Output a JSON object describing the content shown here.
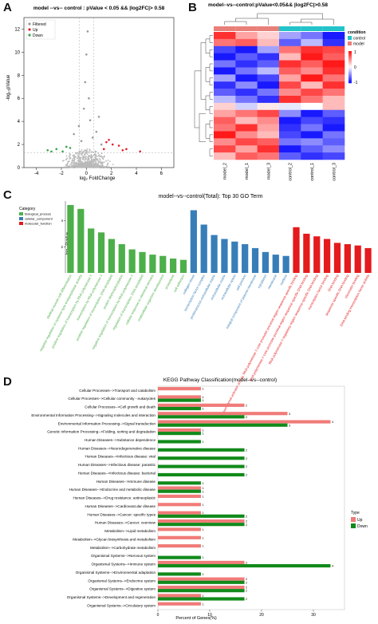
{
  "panels": {
    "a": {
      "letter": "A",
      "title": "model --vs-- control : pValue < 0.05 && |log2FC|> 0.58",
      "xlabel": "log₂ FoldChange",
      "ylabel": "-log₁₀pValue",
      "legend": [
        "Filtered",
        "Up",
        "Down"
      ],
      "legend_colors": [
        "#9a9a9a",
        "#e0222c",
        "#3aa34a"
      ],
      "chart_data": {
        "type": "scatter",
        "title": "model --vs-- control : pValue < 0.05 && |log2FC|> 0.58",
        "xlabel": "log₂ FoldChange",
        "ylabel": "-log₁₀pValue",
        "xlim": [
          -5,
          7
        ],
        "ylim": [
          0,
          13
        ],
        "xticks": [
          -4,
          -2,
          0,
          2,
          4,
          6
        ],
        "yticks": [
          0,
          2,
          4,
          6,
          8,
          10,
          12
        ],
        "series": [
          {
            "name": "Up",
            "points": [
              [
                1.6,
                2.2
              ],
              [
                2.1,
                2.0
              ],
              [
                2.6,
                1.9
              ],
              [
                1.8,
                2.4
              ],
              [
                3.2,
                1.6
              ],
              [
                4.3,
                1.4
              ],
              [
                2.9,
                1.5
              ],
              [
                1.4,
                1.6
              ]
            ]
          },
          {
            "name": "Down",
            "points": [
              [
                -1.6,
                1.8
              ],
              [
                -2.4,
                1.6
              ],
              [
                -1.9,
                1.4
              ],
              [
                -3.1,
                1.5
              ],
              [
                -1.3,
                1.7
              ],
              [
                -2.8,
                1.4
              ]
            ]
          },
          {
            "name": "Filtered",
            "points": [
              [
                0.1,
                11.8
              ],
              [
                0.0,
                9.8
              ],
              [
                -0.1,
                7.4
              ],
              [
                0.2,
                6.0
              ],
              [
                -0.2,
                5.1
              ],
              [
                0.3,
                4.1
              ],
              [
                1.0,
                4.4
              ],
              [
                -0.6,
                3.6
              ],
              [
                0.8,
                3.1
              ],
              [
                -1.0,
                2.9
              ],
              [
                0.5,
                2.6
              ],
              [
                -0.4,
                2.3
              ],
              [
                1.2,
                2.0
              ]
            ]
          }
        ],
        "thresholds": {
          "x": [
            -0.58,
            0.58
          ],
          "y": 1.3
        }
      }
    },
    "b": {
      "letter": "B",
      "title": "model--vs--control:pValue<0.05&& |log2FC|>0.58",
      "legend_title": "condition",
      "legend_items": [
        "control",
        "model"
      ],
      "legend_colors": [
        "#22c3c9",
        "#e8807a"
      ],
      "scale_ticks": [
        "1",
        "0",
        "-1"
      ],
      "columns": [
        "model_2",
        "model_1",
        "model_3",
        "control_2",
        "control_1",
        "control_3"
      ],
      "column_groups": [
        "model",
        "model",
        "model",
        "control",
        "control",
        "control"
      ],
      "chart_data": {
        "type": "heatmap",
        "title": "model--vs--control:pValue<0.05&& |log2FC|>0.58",
        "columns": [
          "model_2",
          "model_1",
          "model_3",
          "control_2",
          "control_1",
          "control_3"
        ],
        "scale": [
          -1,
          0,
          1
        ],
        "values": [
          [
            0.9,
            0.4,
            0.2,
            -0.4,
            -0.6,
            -1.0
          ],
          [
            0.6,
            0.7,
            0.3,
            -0.7,
            -0.3,
            -0.9
          ],
          [
            -0.8,
            -1.0,
            -0.4,
            0.6,
            0.9,
            0.8
          ],
          [
            -1.0,
            -0.7,
            -0.9,
            0.3,
            1.0,
            0.7
          ],
          [
            -0.6,
            -0.9,
            -0.7,
            0.9,
            0.7,
            1.0
          ],
          [
            -1.0,
            -0.6,
            -0.3,
            0.7,
            0.5,
            0.9
          ],
          [
            -0.4,
            -1.0,
            -0.8,
            0.4,
            1.0,
            0.6
          ],
          [
            -0.9,
            -0.5,
            -1.0,
            0.8,
            0.3,
            0.9
          ],
          [
            -0.7,
            -0.9,
            -0.6,
            0.5,
            0.8,
            0.6
          ],
          [
            -0.3,
            -0.6,
            -0.9,
            0.9,
            0.6,
            0.3
          ],
          [
            0.2,
            -0.2,
            0.1,
            -0.1,
            0.0,
            0.3
          ],
          [
            0.4,
            0.6,
            0.8,
            -0.5,
            -1.0,
            -0.7
          ],
          [
            0.7,
            0.3,
            0.5,
            -1.0,
            -0.8,
            -0.9
          ],
          [
            0.6,
            0.9,
            0.4,
            -0.9,
            -0.6,
            -1.0
          ],
          [
            1.0,
            0.5,
            0.3,
            -0.8,
            -1.0,
            -0.6
          ],
          [
            0.5,
            0.8,
            0.7,
            -0.6,
            -0.5,
            -0.7
          ],
          [
            0.8,
            0.4,
            0.9,
            -1.0,
            -0.7,
            -0.5
          ],
          [
            0.3,
            0.7,
            0.6,
            -0.7,
            -0.9,
            -0.8
          ]
        ]
      }
    },
    "c": {
      "letter": "C",
      "title": "model--vs--control(Total): Top 30 GO Term",
      "ylabel": "-log₁₀Pvalue",
      "legend_title": "Category",
      "legend_items": [
        "biological_process",
        "cellular_component",
        "molecular_function"
      ],
      "legend_colors": [
        "#4daf4a",
        "#377eb8",
        "#e41a1c"
      ],
      "chart_data": {
        "type": "bar",
        "title": "model--vs--control(Total): Top 30 GO Term",
        "ylabel": "-log₁₀Pvalue",
        "ylim": [
          0,
          5.5
        ],
        "yticks": [
          2,
          4
        ],
        "categories": [
          "skeletal muscle cell differentiation",
          "negative regulation of cysteine-type endopeptidase activity",
          "positive regulation of transcription by RNA polymerase II",
          "transcription by RNA polymerase II",
          "positive regulation of transcription, DNA-templated",
          "protein dephosphorylation",
          "negative regulation of transcription by RNA polymerase II",
          "regulation of transcription, DNA-templated",
          "cellular response to chemical stimulus",
          "multicellular organism development",
          "proteolysis",
          "cell adhesion",
          "collagen trimer",
          "transcription factor complex",
          "proteinaceous extracellular matrix",
          "extracellular matrix",
          "extracellular space",
          "cell junction",
          "integral component of plasma membrane",
          "cytoplasm",
          "membrane",
          "nucleus",
          "transcriptional activator activity, RNA polymerase II core promoter proximal region sequence-specific binding",
          "RNA polymerase II core promoter proximal region sequence-specific DNA binding",
          "RNA polymerase II regulatory region sequence-specific DNA binding",
          "transcription factor binding",
          "DNA binding",
          "sequence-specific DNA binding",
          "chromatin binding",
          "DNA binding transcription factor activity"
        ],
        "values": [
          5.2,
          4.9,
          3.4,
          3.1,
          2.6,
          2.2,
          1.8,
          1.6,
          1.4,
          1.3,
          1.1,
          1.0,
          4.8,
          3.7,
          2.9,
          2.6,
          2.4,
          2.2,
          1.9,
          1.6,
          1.4,
          1.3,
          3.5,
          3.0,
          2.8,
          2.6,
          2.3,
          2.2,
          2.1,
          1.9
        ],
        "category_group": [
          "biological_process",
          "biological_process",
          "biological_process",
          "biological_process",
          "biological_process",
          "biological_process",
          "biological_process",
          "biological_process",
          "biological_process",
          "biological_process",
          "biological_process",
          "biological_process",
          "cellular_component",
          "cellular_component",
          "cellular_component",
          "cellular_component",
          "cellular_component",
          "cellular_component",
          "cellular_component",
          "cellular_component",
          "cellular_component",
          "cellular_component",
          "molecular_function",
          "molecular_function",
          "molecular_function",
          "molecular_function",
          "molecular_function",
          "molecular_function",
          "molecular_function",
          "molecular_function"
        ]
      }
    },
    "d": {
      "letter": "D",
      "title": "KEGG Pathway Classification(model--vs--control)",
      "xlabel": "Percent of Genes(%)",
      "legend_title": "Type",
      "legend_items": [
        "Up",
        "Down"
      ],
      "legend_colors": [
        "#f07b78",
        "#118a1a"
      ],
      "chart_data": {
        "type": "bar",
        "orientation": "horizontal",
        "title": "KEGG Pathway Classification(model--vs--control)",
        "xlabel": "Percent of Genes(%)",
        "xlim": [
          0,
          36
        ],
        "xticks": [
          0,
          10,
          20,
          30
        ],
        "categories": [
          "Cellular Processes-->Transport and catabolism",
          "Cellular Processes-->Cellular community - eukaryotes",
          "Cellular Processes-->Cell growth and death",
          "Environmental Information Processing-->Signaling molecules and interaction",
          "Environmental Information Processing-->Signal transduction",
          "Genetic Information Processing-->Folding, sorting and degradation",
          "Human Diseases-->Substance dependence",
          "Human Diseases-->Neurodegenerative disease",
          "Human Diseases-->Infectious disease: viral",
          "Human Diseases-->Infectious disease: parasitic",
          "Human Diseases-->Infectious disease: bacterial",
          "Human Diseases-->Immune disease",
          "Human Diseases-->Endocrine and metabolic disease",
          "Human Diseases-->Drug resistance: antineoplastic",
          "Human Diseases-->Cardiovascular disease",
          "Human Diseases-->Cancer: specific types",
          "Human Diseases-->Cancer: overview",
          "Metabolism-->Lipid metabolism",
          "Metabolism-->Glycan biosynthesis and metabolism",
          "Metabolism-->Carbohydrate metabolism",
          "Organismal Systems-->Nervous system",
          "Organismal Systems-->Immune system",
          "Organismal Systems-->Environmental adaptation",
          "Organismal Systems-->Endocrine system",
          "Organismal Systems-->Digestive system",
          "Organismal Systems-->Development and regeneration",
          "Organismal Systems-->Circulatory system"
        ],
        "series": [
          {
            "name": "Up",
            "values": [
              8.3,
              8.3,
              16.7,
              25.0,
              33.3,
              8.3,
              0,
              0,
              0,
              0,
              0,
              0,
              8.3,
              8.3,
              8.3,
              8.3,
              16.7,
              8.3,
              8.3,
              8.3,
              0,
              16.7,
              0,
              16.7,
              16.7,
              8.3,
              8.3
            ]
          },
          {
            "name": "Down",
            "values": [
              0,
              8.3,
              8.3,
              16.7,
              25.0,
              8.3,
              8.3,
              16.7,
              16.7,
              16.7,
              16.7,
              8.3,
              8.3,
              0,
              0,
              16.7,
              16.7,
              0,
              0,
              0,
              8.3,
              33.3,
              8.3,
              16.7,
              16.7,
              16.7,
              0
            ]
          }
        ],
        "up_labels": [
          "1",
          "1",
          "2",
          "3",
          "4",
          "1",
          "",
          "",
          "",
          "",
          "",
          "",
          "1",
          "1",
          "1",
          "1",
          "2",
          "1",
          "1",
          "1",
          "",
          "2",
          "",
          "2",
          "2",
          "1",
          "1"
        ],
        "down_labels": [
          "",
          "1",
          "1",
          "2",
          "3",
          "1",
          "1",
          "2",
          "2",
          "2",
          "2",
          "1",
          "1",
          "",
          "",
          "2",
          "2",
          "",
          "",
          "",
          "1",
          "4",
          "1",
          "2",
          "2",
          "2",
          ""
        ]
      }
    }
  }
}
